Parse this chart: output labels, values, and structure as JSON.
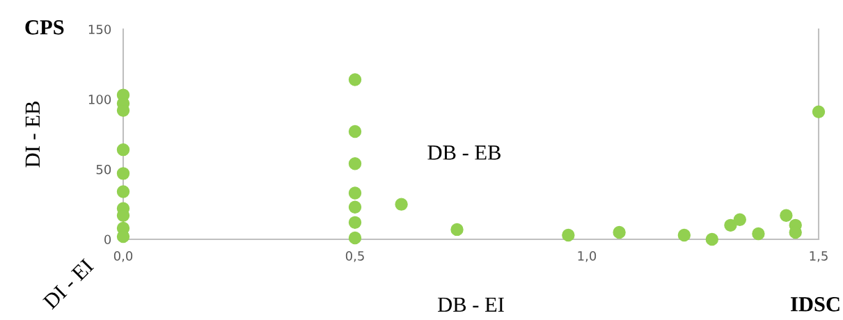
{
  "chart_data": {
    "type": "scatter",
    "ylabel": "DI - EB",
    "xlabel": "DB - EI",
    "annotations": [
      "CPS",
      "DB - EB",
      "DI - EI",
      "IDSC"
    ],
    "series": [
      {
        "color": "#92d050",
        "x": [
          0,
          0,
          0,
          0,
          0,
          0,
          0,
          0,
          0,
          0,
          0.5,
          0.5,
          0.5,
          0.5,
          0.5,
          0.5,
          0.5,
          0.6,
          0.72,
          0.96,
          1.07,
          1.21,
          1.27,
          1.31,
          1.33,
          1.37,
          1.43,
          1.45,
          1.45,
          1.5
        ],
        "values": [
          103,
          97,
          92,
          64,
          47,
          34,
          22,
          17,
          8,
          2,
          114,
          77,
          54,
          33,
          23,
          12,
          1,
          25,
          7,
          3,
          5,
          3,
          0,
          10,
          14,
          4,
          17,
          10,
          5,
          91
        ]
      }
    ],
    "xlim": [
      0,
      1.5
    ],
    "xticks": [
      {
        "value": 0,
        "label": "0,0"
      },
      {
        "value": 0.5,
        "label": "0,5"
      },
      {
        "value": 1.0,
        "label": "1,0"
      },
      {
        "value": 1.5,
        "label": "1,5"
      }
    ],
    "ylim": [
      0,
      150
    ],
    "yticks": [
      0,
      50,
      100,
      150
    ],
    "grid": false,
    "marker": "circle"
  }
}
